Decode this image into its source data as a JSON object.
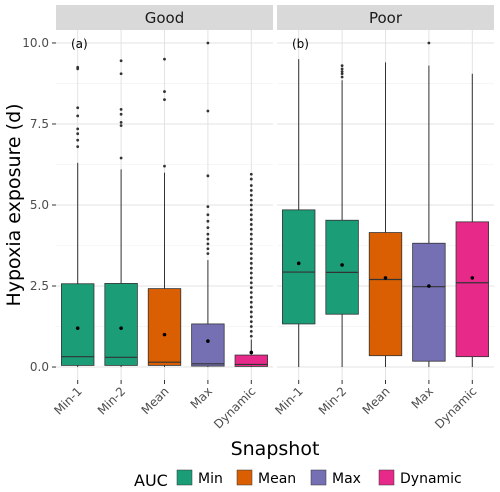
{
  "chart_data": {
    "type": "boxplot",
    "xlabel": "Snapshot",
    "ylabel": "Hypoxia exposure (d)",
    "ylim": [
      -0.4,
      10.4
    ],
    "yticks": [
      0.0,
      2.5,
      5.0,
      7.5,
      10.0
    ],
    "ytick_labels": [
      "0.0",
      "2.5",
      "5.0",
      "7.5",
      "10.0"
    ],
    "categories": [
      "Min-1",
      "Min-2",
      "Mean",
      "Max",
      "Dynamic"
    ],
    "legend": {
      "title": "AUC",
      "position": "bottom",
      "entries": [
        {
          "label": "Min",
          "color": "#1b9e77"
        },
        {
          "label": "Mean",
          "color": "#d95f02"
        },
        {
          "label": "Max",
          "color": "#7570b3"
        },
        {
          "label": "Dynamic",
          "color": "#e7298a"
        }
      ]
    },
    "grid": true,
    "panels": [
      {
        "strip": "Good",
        "tag": "(a)",
        "boxes": [
          {
            "category": "Min-1",
            "auc": "Min",
            "whisker_low": 0.0,
            "q1": 0.05,
            "median": 0.32,
            "q3": 2.57,
            "whisker_high": 6.3,
            "mean": 1.2,
            "outliers": [
              9.25,
              9.2,
              8.0,
              7.75,
              7.35,
              7.2,
              7.0,
              6.8
            ]
          },
          {
            "category": "Min-2",
            "auc": "Min",
            "whisker_low": 0.0,
            "q1": 0.05,
            "median": 0.3,
            "q3": 2.58,
            "whisker_high": 6.1,
            "mean": 1.2,
            "outliers": [
              9.45,
              9.05,
              7.95,
              7.8,
              7.55,
              7.45,
              6.45
            ]
          },
          {
            "category": "Mean",
            "auc": "Mean",
            "whisker_low": 0.0,
            "q1": 0.05,
            "median": 0.15,
            "q3": 2.42,
            "whisker_high": 6.0,
            "mean": 1.0,
            "outliers": [
              9.5,
              8.5,
              8.25,
              6.2
            ]
          },
          {
            "category": "Max",
            "auc": "Max",
            "whisker_low": 0.0,
            "q1": 0.03,
            "median": 0.1,
            "q3": 1.33,
            "whisker_high": 3.3,
            "mean": 0.8,
            "outliers": [
              10.0,
              7.9,
              5.9,
              4.95,
              4.7,
              4.5,
              4.3,
              4.1,
              3.95,
              3.8,
              3.65,
              3.5
            ]
          },
          {
            "category": "Dynamic",
            "auc": "Dynamic",
            "whisker_low": 0.0,
            "q1": 0.02,
            "median": 0.08,
            "q3": 0.37,
            "whisker_high": 0.85,
            "mean": 0.45,
            "outliers": [
              5.95,
              5.8,
              5.6,
              5.45,
              5.3,
              5.15,
              5.0,
              4.85,
              4.7,
              4.55,
              4.4,
              4.25,
              4.1,
              3.95,
              3.8,
              3.65,
              3.5,
              3.35,
              3.2,
              3.05,
              2.9,
              2.75,
              2.6,
              2.45,
              2.3,
              2.15,
              2.0,
              1.85,
              1.7,
              1.55,
              1.4,
              1.25,
              1.1,
              0.95
            ]
          }
        ]
      },
      {
        "strip": "Poor",
        "tag": "(b)",
        "boxes": [
          {
            "category": "Min-1",
            "auc": "Min",
            "whisker_low": 0.0,
            "q1": 1.33,
            "median": 2.93,
            "q3": 4.85,
            "whisker_high": 9.5,
            "mean": 3.2,
            "outliers": []
          },
          {
            "category": "Min-2",
            "auc": "Min",
            "whisker_low": 0.0,
            "q1": 1.63,
            "median": 2.92,
            "q3": 4.53,
            "whisker_high": 8.85,
            "mean": 3.15,
            "outliers": [
              9.3,
              9.2,
              9.12,
              9.05,
              8.95
            ]
          },
          {
            "category": "Mean",
            "auc": "Mean",
            "whisker_low": 0.0,
            "q1": 0.35,
            "median": 2.7,
            "q3": 4.15,
            "whisker_high": 9.4,
            "mean": 2.75,
            "outliers": []
          },
          {
            "category": "Max",
            "auc": "Max",
            "whisker_low": 0.0,
            "q1": 0.18,
            "median": 2.48,
            "q3": 3.82,
            "whisker_high": 9.3,
            "mean": 2.5,
            "outliers": [
              10.0
            ]
          },
          {
            "category": "Dynamic",
            "auc": "Dynamic",
            "whisker_low": 0.0,
            "q1": 0.32,
            "median": 2.6,
            "q3": 4.48,
            "whisker_high": 9.05,
            "mean": 2.75,
            "outliers": []
          }
        ]
      }
    ]
  }
}
